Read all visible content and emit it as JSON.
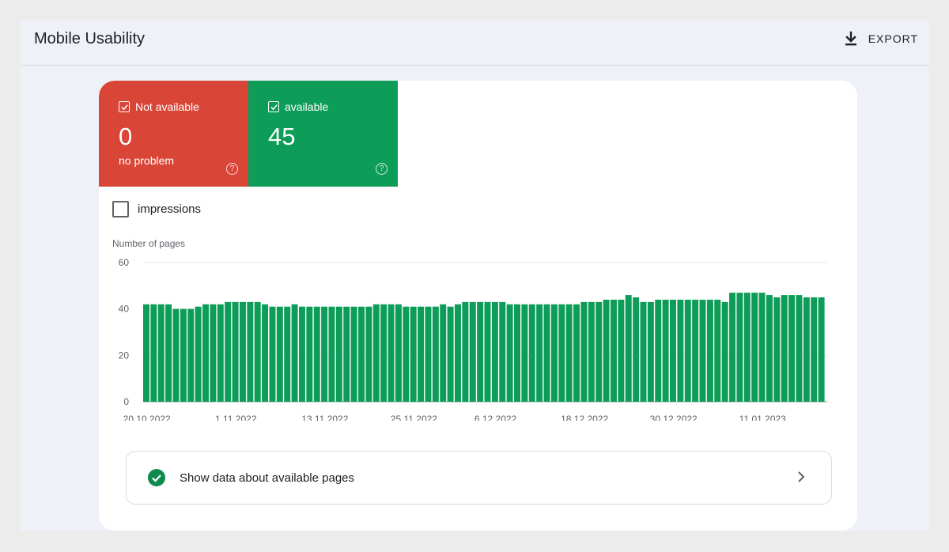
{
  "header": {
    "title": "Mobile Usability",
    "export_label": "EXPORT",
    "export_icon": "download-icon"
  },
  "tiles": [
    {
      "label": "Not available",
      "value": "0",
      "sub": "no problem",
      "color": "#d94537",
      "checked": true
    },
    {
      "label": "available",
      "value": "45",
      "sub": "",
      "color": "#0e9d58",
      "checked": true
    }
  ],
  "impressions": {
    "label": "impressions",
    "checked": false
  },
  "chart_data": {
    "type": "bar",
    "ylabel": "Number of pages",
    "ylim": [
      0,
      60
    ],
    "yticks": [
      0,
      20,
      40,
      60
    ],
    "grid": true,
    "color": "#0e9d58",
    "xtick_labels": [
      "20.10.2022",
      "1.11.2022",
      "13.11.2022",
      "25.11.2022",
      "6.12.2022",
      "18.12.2022",
      "30.12.2022",
      "11.01.2023"
    ],
    "xtick_indices": [
      0,
      12,
      24,
      36,
      47,
      59,
      71,
      83
    ],
    "series": [
      {
        "values": [
          42,
          42,
          42,
          42,
          40,
          40,
          40,
          41,
          42,
          42,
          42,
          43,
          43,
          43,
          43,
          43,
          42,
          41,
          41,
          41,
          42,
          41,
          41,
          41,
          41,
          41,
          41,
          41,
          41,
          41,
          41,
          42,
          42,
          42,
          42,
          41,
          41,
          41,
          41,
          41,
          42,
          41,
          42,
          43,
          43,
          43,
          43,
          43,
          43,
          42,
          42,
          42,
          42,
          42,
          42,
          42,
          42,
          42,
          42,
          43,
          43,
          43,
          44,
          44,
          44,
          46,
          45,
          43,
          43,
          44,
          44,
          44,
          44,
          44,
          44,
          44,
          44,
          44,
          43,
          47,
          47,
          47,
          47,
          47,
          46,
          45,
          46,
          46,
          46,
          45,
          45,
          45
        ]
      }
    ]
  },
  "show_data": {
    "label": "Show data about available pages",
    "icon": "check-circle-icon",
    "chevron_icon": "chevron-right-icon"
  }
}
